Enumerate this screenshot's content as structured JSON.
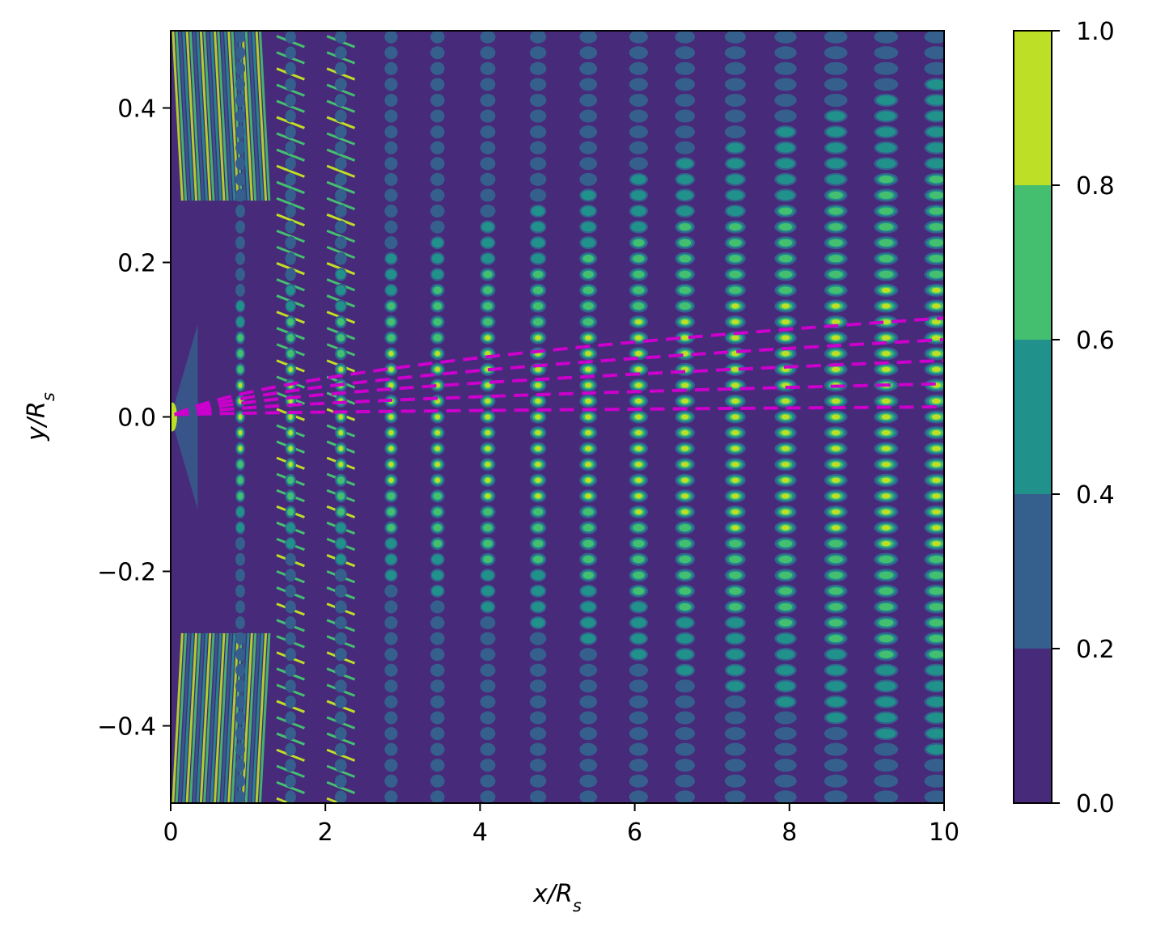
{
  "chart_data": {
    "type": "heatmap",
    "title": "",
    "xlabel": "x/R_s",
    "ylabel": "y/R_s",
    "xlim": [
      0,
      10
    ],
    "ylim": [
      -0.5,
      0.5
    ],
    "x_ticks": [
      "0",
      "2",
      "4",
      "6",
      "8",
      "10"
    ],
    "x_tick_values": [
      0,
      2,
      4,
      6,
      8,
      10
    ],
    "y_ticks": [
      "−0.4",
      "−0.2",
      "0.0",
      "0.2",
      "0.4"
    ],
    "y_tick_values": [
      -0.4,
      -0.2,
      0.0,
      0.2,
      0.4
    ],
    "colorbar": {
      "levels": [
        0.0,
        0.2,
        0.4,
        0.6,
        0.8,
        1.0
      ],
      "tick_labels": [
        "0.0",
        "0.2",
        "0.4",
        "0.6",
        "0.8",
        "1.0"
      ],
      "colors": [
        "#472a7a",
        "#355f8d",
        "#21918c",
        "#44bf70",
        "#bddf26"
      ]
    },
    "field": {
      "description_kind": "normalized intensity (filled contours, 5 levels)",
      "columns_x": [
        0.9,
        1.55,
        2.2,
        2.85,
        3.45,
        4.1,
        4.75,
        5.4,
        6.05,
        6.65,
        7.3,
        7.95,
        8.6,
        9.25,
        9.9
      ],
      "spots_per_column_y_step": 0.0205
    },
    "overlay_lines": {
      "color": "#cc00cc",
      "style": "dashed",
      "x_start": 0.05,
      "x_end": 10,
      "y_at_end": [
        0.013,
        0.043,
        0.073,
        0.1,
        0.128
      ]
    }
  }
}
